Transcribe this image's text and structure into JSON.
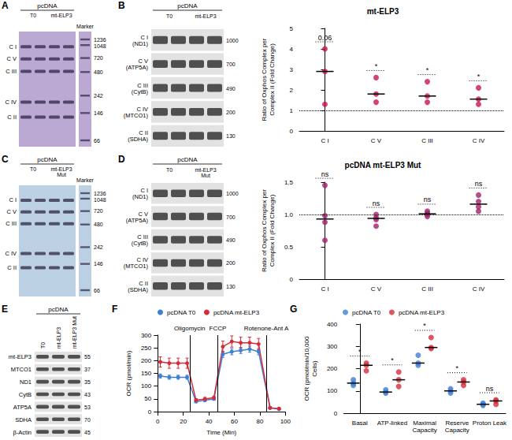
{
  "blots": [
    {
      "panel": "A",
      "header": "pcDNA",
      "lanes": [
        "T0",
        "mt-ELP3"
      ],
      "rows": [
        "C I",
        "C V",
        "C III",
        "C IV",
        "C II"
      ],
      "marker_title": "Marker",
      "markers": [
        1236,
        1048,
        720,
        480,
        242,
        146,
        66
      ],
      "color": "#bba9d4"
    },
    {
      "panel": "B",
      "header": "pcDNA",
      "lanes": [
        "T0",
        "mt-ELP3"
      ],
      "rows": [
        {
          "label": "C I",
          "sublabel": "(ND1)",
          "size": 1000
        },
        {
          "label": "C V",
          "sublabel": "(ATP5A)",
          "size": 700
        },
        {
          "label": "C III",
          "sublabel": "(CytB)",
          "size": 490
        },
        {
          "label": "C IV",
          "sublabel": "(MTCO1)",
          "size": 200
        },
        {
          "label": "C II",
          "sublabel": "(SDHA)",
          "size": 130
        }
      ]
    },
    {
      "panel": "C",
      "header": "pcDNA",
      "lanes": [
        "T0",
        "mt-ELP3 Mut"
      ],
      "rows": [
        "C I",
        "C V",
        "C III",
        "C IV",
        "C II"
      ],
      "marker_title": "Marker",
      "markers": [
        1236,
        1048,
        720,
        480,
        242,
        146,
        66
      ],
      "color": "#bcd0e4"
    },
    {
      "panel": "D",
      "header": "pcDNA",
      "lanes": [
        "T0",
        "mt-ELP3 Mut"
      ],
      "rows": [
        {
          "label": "C I",
          "sublabel": "(ND1)",
          "size": 1000
        },
        {
          "label": "C V",
          "sublabel": "(ATP5A)",
          "size": 700
        },
        {
          "label": "C III",
          "sublabel": "(CytB)",
          "size": 490
        },
        {
          "label": "C IV",
          "sublabel": "(MTCO1)",
          "size": 200
        },
        {
          "label": "C II",
          "sublabel": "(SDHA)",
          "size": 130
        }
      ]
    },
    {
      "panel": "E",
      "header": "pcDNA",
      "lanes": [
        "T0",
        "mt-ELP3",
        "mt-ELP3 Mut"
      ],
      "rows": [
        {
          "label": "mt-ELP3",
          "size": 55
        },
        {
          "label": "MTCO1",
          "size": 37
        },
        {
          "label": "ND1",
          "size": 35
        },
        {
          "label": "CytB",
          "size": 43
        },
        {
          "label": "ATP5A",
          "size": 53
        },
        {
          "label": "SDHA",
          "size": 70
        },
        {
          "label": "β-Actin",
          "size": 45
        }
      ]
    }
  ],
  "chart_data": [
    {
      "type": "dot",
      "title": "mt-ELP3",
      "y_label": "Ratio of Oxphos Complex per Complex II (Fold Change)",
      "categories": [
        "C I",
        "C V",
        "C III",
        "C IV"
      ],
      "values": [
        [
          4.0,
          2.9,
          1.3
        ],
        [
          2.6,
          1.8,
          1.4
        ],
        [
          2.4,
          1.7,
          1.4
        ],
        [
          2.1,
          1.55,
          1.3
        ]
      ],
      "medians": [
        2.9,
        1.8,
        1.7,
        1.55
      ],
      "color": "#c8174a",
      "marker": "circle",
      "significance": [
        "0.06",
        "*",
        "*",
        "*"
      ],
      "reference": 1,
      "ylim": [
        0,
        5
      ],
      "yticks": [
        0,
        1,
        2,
        3,
        4,
        5
      ],
      "grid": false
    },
    {
      "type": "dot",
      "title": "pcDNA mt-ELP3 Mut",
      "y_label": "Ratio of Oxphos Complex per Complex II (Fold Change)",
      "categories": [
        "C I",
        "C V",
        "C III",
        "C IV"
      ],
      "values": [
        [
          1.45,
          0.98,
          0.88,
          0.6
        ],
        [
          1.0,
          0.95,
          0.92,
          0.82
        ],
        [
          1.05,
          1.02,
          1.0,
          0.97
        ],
        [
          1.3,
          1.2,
          1.12,
          1.05
        ]
      ],
      "medians": [
        0.93,
        0.94,
        1.01,
        1.16
      ],
      "color": "#a3206e",
      "marker": "circle",
      "significance": [
        "ns",
        "ns",
        "ns",
        "ns"
      ],
      "reference": 1,
      "ylim": [
        0,
        1.5
      ],
      "yticks": [
        0,
        0.5,
        {
          "value": 1,
          "label": "1.0"
        },
        1.5
      ],
      "grid": false
    },
    {
      "panel": "F",
      "type": "line",
      "x_label": "Time (Min)",
      "y_label": "OCR (pmol/min)",
      "x": [
        2,
        9,
        16,
        23,
        30,
        37,
        44,
        51,
        58,
        65,
        72,
        79,
        88,
        95
      ],
      "series": [
        {
          "name": "pcDNA T0",
          "color": "#3d7fd6",
          "values": [
            140,
            135,
            135,
            135,
            40,
            45,
            50,
            225,
            235,
            240,
            245,
            235,
            15,
            10
          ],
          "errors": [
            8,
            8,
            8,
            8,
            5,
            5,
            5,
            12,
            12,
            12,
            12,
            12,
            3,
            3
          ]
        },
        {
          "name": "pcDNA mt-ELP3",
          "color": "#d62c3a",
          "values": [
            195,
            190,
            190,
            190,
            45,
            50,
            55,
            255,
            275,
            270,
            270,
            265,
            15,
            12
          ],
          "errors": [
            20,
            20,
            20,
            20,
            6,
            6,
            6,
            22,
            22,
            22,
            22,
            22,
            3,
            3
          ]
        }
      ],
      "annotations": [
        {
          "x": 25,
          "text": "Oligomycin"
        },
        {
          "x": 47,
          "text": "FCCP"
        },
        {
          "x": 85,
          "text": "Rotenone-Ant A"
        }
      ],
      "xlim": [
        0,
        100
      ],
      "xticks": [
        0,
        20,
        40,
        60,
        80,
        100
      ],
      "ylim": [
        0,
        300
      ],
      "yticks": [
        0,
        50,
        100,
        150,
        200,
        250,
        300
      ],
      "legend": "top-left",
      "marker": "circle",
      "grid": false
    },
    {
      "panel": "G",
      "type": "dot",
      "y_label": "OCR (pmol/min/10,000 Cells)",
      "categories": [
        "Basal",
        "ATP-linked",
        "Maximal Capacity",
        "Reserve Capacity",
        "Proton Leak"
      ],
      "series": [
        {
          "name": "pcDNA T0",
          "color": "#3d7fd6",
          "values": [
            [
              125,
              135,
              150
            ],
            [
              90,
              95,
              105
            ],
            [
              215,
              225,
              260
            ],
            [
              90,
              100,
              110
            ],
            [
              35,
              40,
              45
            ]
          ],
          "medians": [
            135,
            95,
            225,
            100,
            40
          ]
        },
        {
          "name": "pcDNA mt-ELP3",
          "color": "#d62c3a",
          "values": [
            [
              190,
              215,
              225
            ],
            [
              120,
              150,
              185
            ],
            [
              290,
              295,
              340
            ],
            [
              125,
              140,
              150
            ],
            [
              40,
              55,
              60
            ]
          ],
          "medians": [
            215,
            150,
            295,
            140,
            55
          ]
        }
      ],
      "significance": [
        "*",
        "*",
        "*",
        "*",
        "ns"
      ],
      "ylim": [
        0,
        400
      ],
      "yticks": [
        0,
        100,
        200,
        300,
        400
      ],
      "legend": "top-left",
      "marker": "circle",
      "grid": false
    }
  ]
}
